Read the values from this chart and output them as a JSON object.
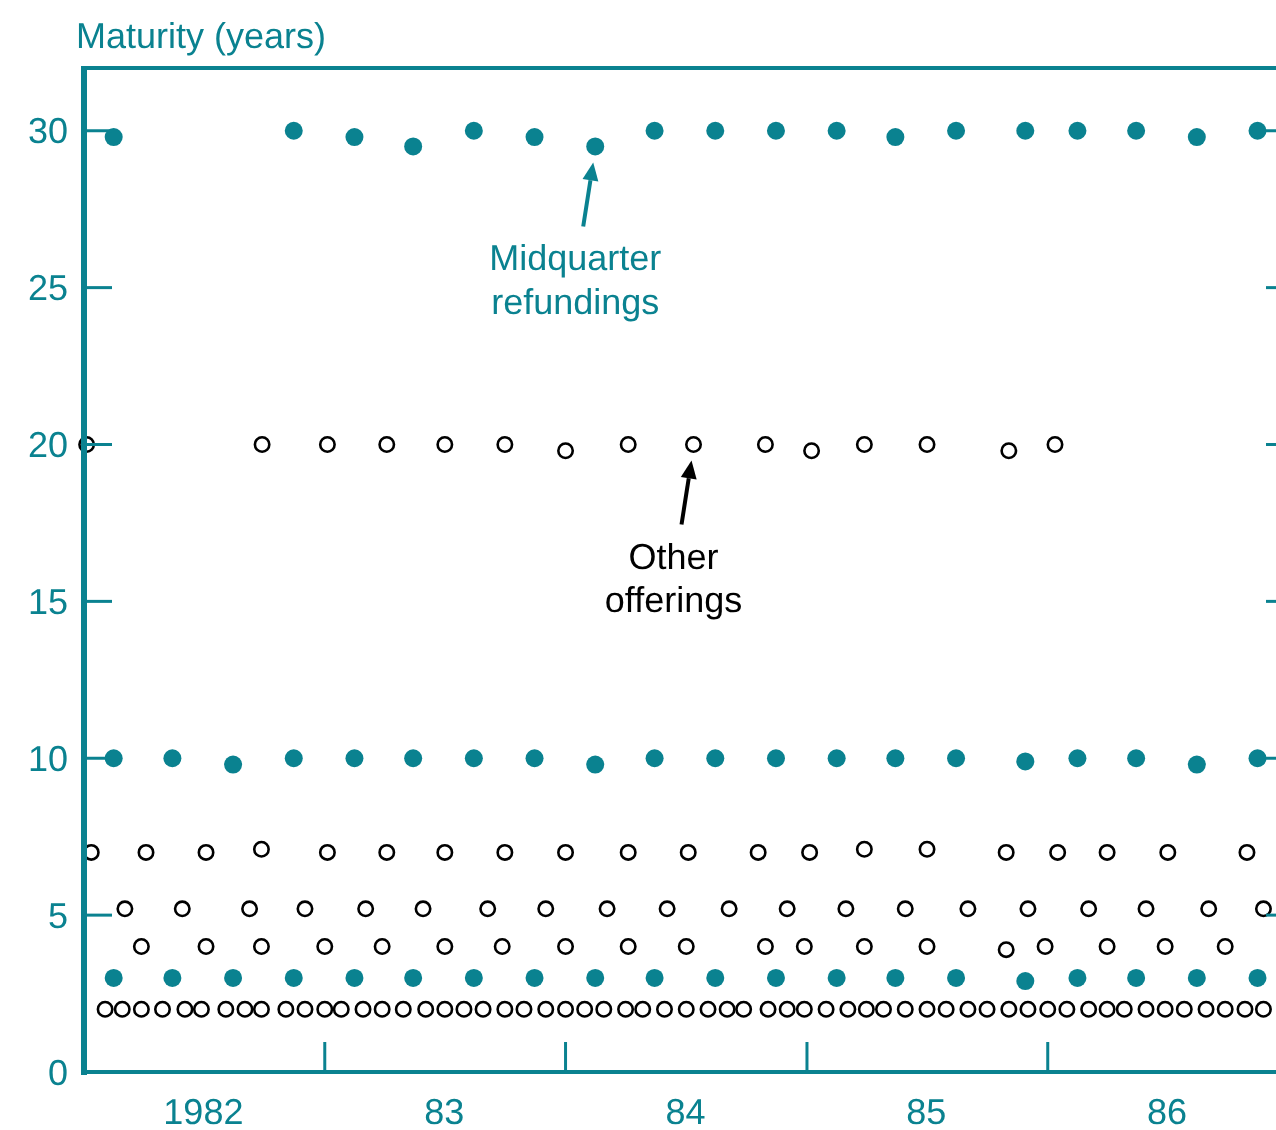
{
  "chart_data": {
    "type": "scatter",
    "ylabel": "Maturity (years)",
    "marker": "circle",
    "grid": false,
    "legend": "top",
    "xlim": [
      "1982-01-01",
      "1986-12-10"
    ],
    "ylim": [
      0,
      32
    ],
    "yticks": [
      0,
      5,
      10,
      15,
      20,
      25,
      30
    ],
    "xticks": [
      {
        "value": "1982-07-01",
        "label": "1982"
      },
      {
        "value": "1983-01-01",
        "label": null
      },
      {
        "value": "1983-07-01",
        "label": "83"
      },
      {
        "value": "1984-01-01",
        "label": null
      },
      {
        "value": "1984-07-01",
        "label": "84"
      },
      {
        "value": "1985-01-01",
        "label": null
      },
      {
        "value": "1985-07-01",
        "label": "85"
      },
      {
        "value": "1986-01-01",
        "label": null
      },
      {
        "value": "1986-07-01",
        "label": "86"
      }
    ],
    "series": [
      {
        "name": "Midquarter refundings",
        "color": "#0a8290",
        "x": [
          "1982-02-15",
          "1982-11-15",
          "1983-02-15",
          "1983-05-15",
          "1983-08-15",
          "1983-11-15",
          "1984-02-15",
          "1984-05-15",
          "1984-08-15",
          "1984-11-15",
          "1985-02-15",
          "1985-05-15",
          "1985-08-15",
          "1985-11-28",
          "1986-02-15",
          "1986-05-15",
          "1986-08-15",
          "1986-11-15",
          "1982-02-15",
          "1982-05-15",
          "1982-08-15",
          "1982-11-15",
          "1983-02-15",
          "1983-05-15",
          "1983-08-15",
          "1983-11-15",
          "1984-02-15",
          "1984-05-15",
          "1984-08-15",
          "1984-11-15",
          "1985-02-15",
          "1985-05-15",
          "1985-08-15",
          "1985-11-28",
          "1986-02-15",
          "1986-05-15",
          "1986-08-15",
          "1986-11-15",
          "1982-02-15",
          "1982-05-15",
          "1982-08-15",
          "1982-11-15",
          "1983-02-15",
          "1983-05-15",
          "1983-08-15",
          "1983-11-15",
          "1984-02-15",
          "1984-05-15",
          "1984-08-15",
          "1984-11-15",
          "1985-02-15",
          "1985-05-15",
          "1985-08-15",
          "1985-11-28",
          "1986-02-15",
          "1986-05-15",
          "1986-08-15",
          "1986-11-15"
        ],
        "values": [
          29.8,
          30,
          29.8,
          29.5,
          30,
          29.8,
          29.5,
          30,
          30,
          30,
          30,
          29.8,
          30,
          30,
          30,
          30,
          29.8,
          30,
          10,
          10,
          9.8,
          10,
          10,
          10,
          10,
          10,
          9.8,
          10,
          10,
          10,
          10,
          10,
          10,
          9.9,
          10,
          10,
          9.8,
          10,
          3,
          3,
          3,
          3,
          3,
          3,
          3,
          3,
          3,
          3,
          3,
          3,
          3,
          3,
          3,
          2.9,
          3,
          3,
          3,
          3
        ]
      },
      {
        "name": "Other offerings",
        "color": "#000000",
        "x": [
          "1982-01-05",
          "1982-09-28",
          "1983-01-05",
          "1983-04-05",
          "1983-07-02",
          "1983-10-01",
          "1984-01-01",
          "1984-04-05",
          "1984-07-13",
          "1984-10-30",
          "1985-01-08",
          "1985-03-29",
          "1985-07-02",
          "1985-11-03",
          "1986-01-12",
          "1982-01-12",
          "1982-04-05",
          "1982-07-05",
          "1982-09-27",
          "1983-01-05",
          "1983-04-05",
          "1983-07-02",
          "1983-10-01",
          "1984-01-01",
          "1984-04-05",
          "1984-07-05",
          "1984-10-19",
          "1985-01-05",
          "1985-03-29",
          "1985-07-02",
          "1985-10-30",
          "1986-01-16",
          "1986-04-01",
          "1986-07-02",
          "1986-10-30",
          "1982-03-04",
          "1982-05-30",
          "1982-09-09",
          "1982-12-02",
          "1983-03-04",
          "1983-05-30",
          "1983-09-05",
          "1983-12-02",
          "1984-03-04",
          "1984-06-03",
          "1984-09-05",
          "1984-12-02",
          "1985-03-01",
          "1985-05-30",
          "1985-09-02",
          "1985-12-02",
          "1986-03-04",
          "1986-05-30",
          "1986-09-02",
          "1986-11-24",
          "1982-03-29",
          "1982-07-05",
          "1982-09-27",
          "1983-01-01",
          "1983-03-29",
          "1983-07-02",
          "1983-09-27",
          "1984-01-01",
          "1984-04-05",
          "1984-07-02",
          "1984-10-30",
          "1984-12-28",
          "1985-03-29",
          "1985-07-02",
          "1985-10-30",
          "1985-12-28",
          "1986-04-01",
          "1986-06-28",
          "1986-09-27",
          "1982-02-02",
          "1982-02-28",
          "1982-03-29",
          "1982-04-30",
          "1982-06-03",
          "1982-06-28",
          "1982-08-04",
          "1982-09-02",
          "1982-09-27",
          "1982-11-03",
          "1982-12-02",
          "1983-01-01",
          "1983-01-26",
          "1983-02-28",
          "1983-03-29",
          "1983-04-30",
          "1983-06-03",
          "1983-07-02",
          "1983-07-31",
          "1983-08-29",
          "1983-10-01",
          "1983-10-30",
          "1983-12-02",
          "1984-01-01",
          "1984-01-30",
          "1984-02-28",
          "1984-04-01",
          "1984-04-27",
          "1984-05-30",
          "1984-07-02",
          "1984-08-04",
          "1984-09-02",
          "1984-09-27",
          "1984-11-03",
          "1984-12-02",
          "1984-12-28",
          "1985-01-30",
          "1985-03-04",
          "1985-04-01",
          "1985-04-27",
          "1985-05-30",
          "1985-07-02",
          "1985-07-31",
          "1985-09-02",
          "1985-10-01",
          "1985-11-03",
          "1985-12-02",
          "1986-01-01",
          "1986-01-30",
          "1986-03-04",
          "1986-04-01",
          "1986-04-27",
          "1986-05-30",
          "1986-06-28",
          "1986-07-27",
          "1986-08-29",
          "1986-09-27",
          "1986-10-27",
          "1986-11-24"
        ],
        "values": [
          20,
          20,
          20,
          20,
          20,
          20,
          19.8,
          20,
          20,
          20,
          19.8,
          20,
          20,
          19.8,
          20,
          7,
          7,
          7,
          7.1,
          7,
          7,
          7,
          7,
          7,
          7,
          7,
          7,
          7,
          7.1,
          7.1,
          7,
          7,
          7,
          7,
          7,
          5.2,
          5.2,
          5.2,
          5.2,
          5.2,
          5.2,
          5.2,
          5.2,
          5.2,
          5.2,
          5.2,
          5.2,
          5.2,
          5.2,
          5.2,
          5.2,
          5.2,
          5.2,
          5.2,
          5.2,
          4,
          4,
          4,
          4,
          4,
          4,
          4,
          4,
          4,
          4,
          4,
          4,
          4,
          4,
          3.9,
          4,
          4,
          4,
          4,
          2,
          2,
          2,
          2,
          2,
          2,
          2,
          2,
          2,
          2,
          2,
          2,
          2,
          2,
          2,
          2,
          2,
          2,
          2,
          2,
          2,
          2,
          2,
          2,
          2,
          2,
          2,
          2,
          2,
          2,
          2,
          2,
          2,
          2,
          2,
          2,
          2,
          2,
          2,
          2,
          2,
          2,
          2,
          2,
          2,
          2,
          2,
          2,
          2,
          2,
          2,
          2,
          2,
          2,
          2,
          2,
          2,
          2,
          2
        ]
      }
    ]
  }
}
